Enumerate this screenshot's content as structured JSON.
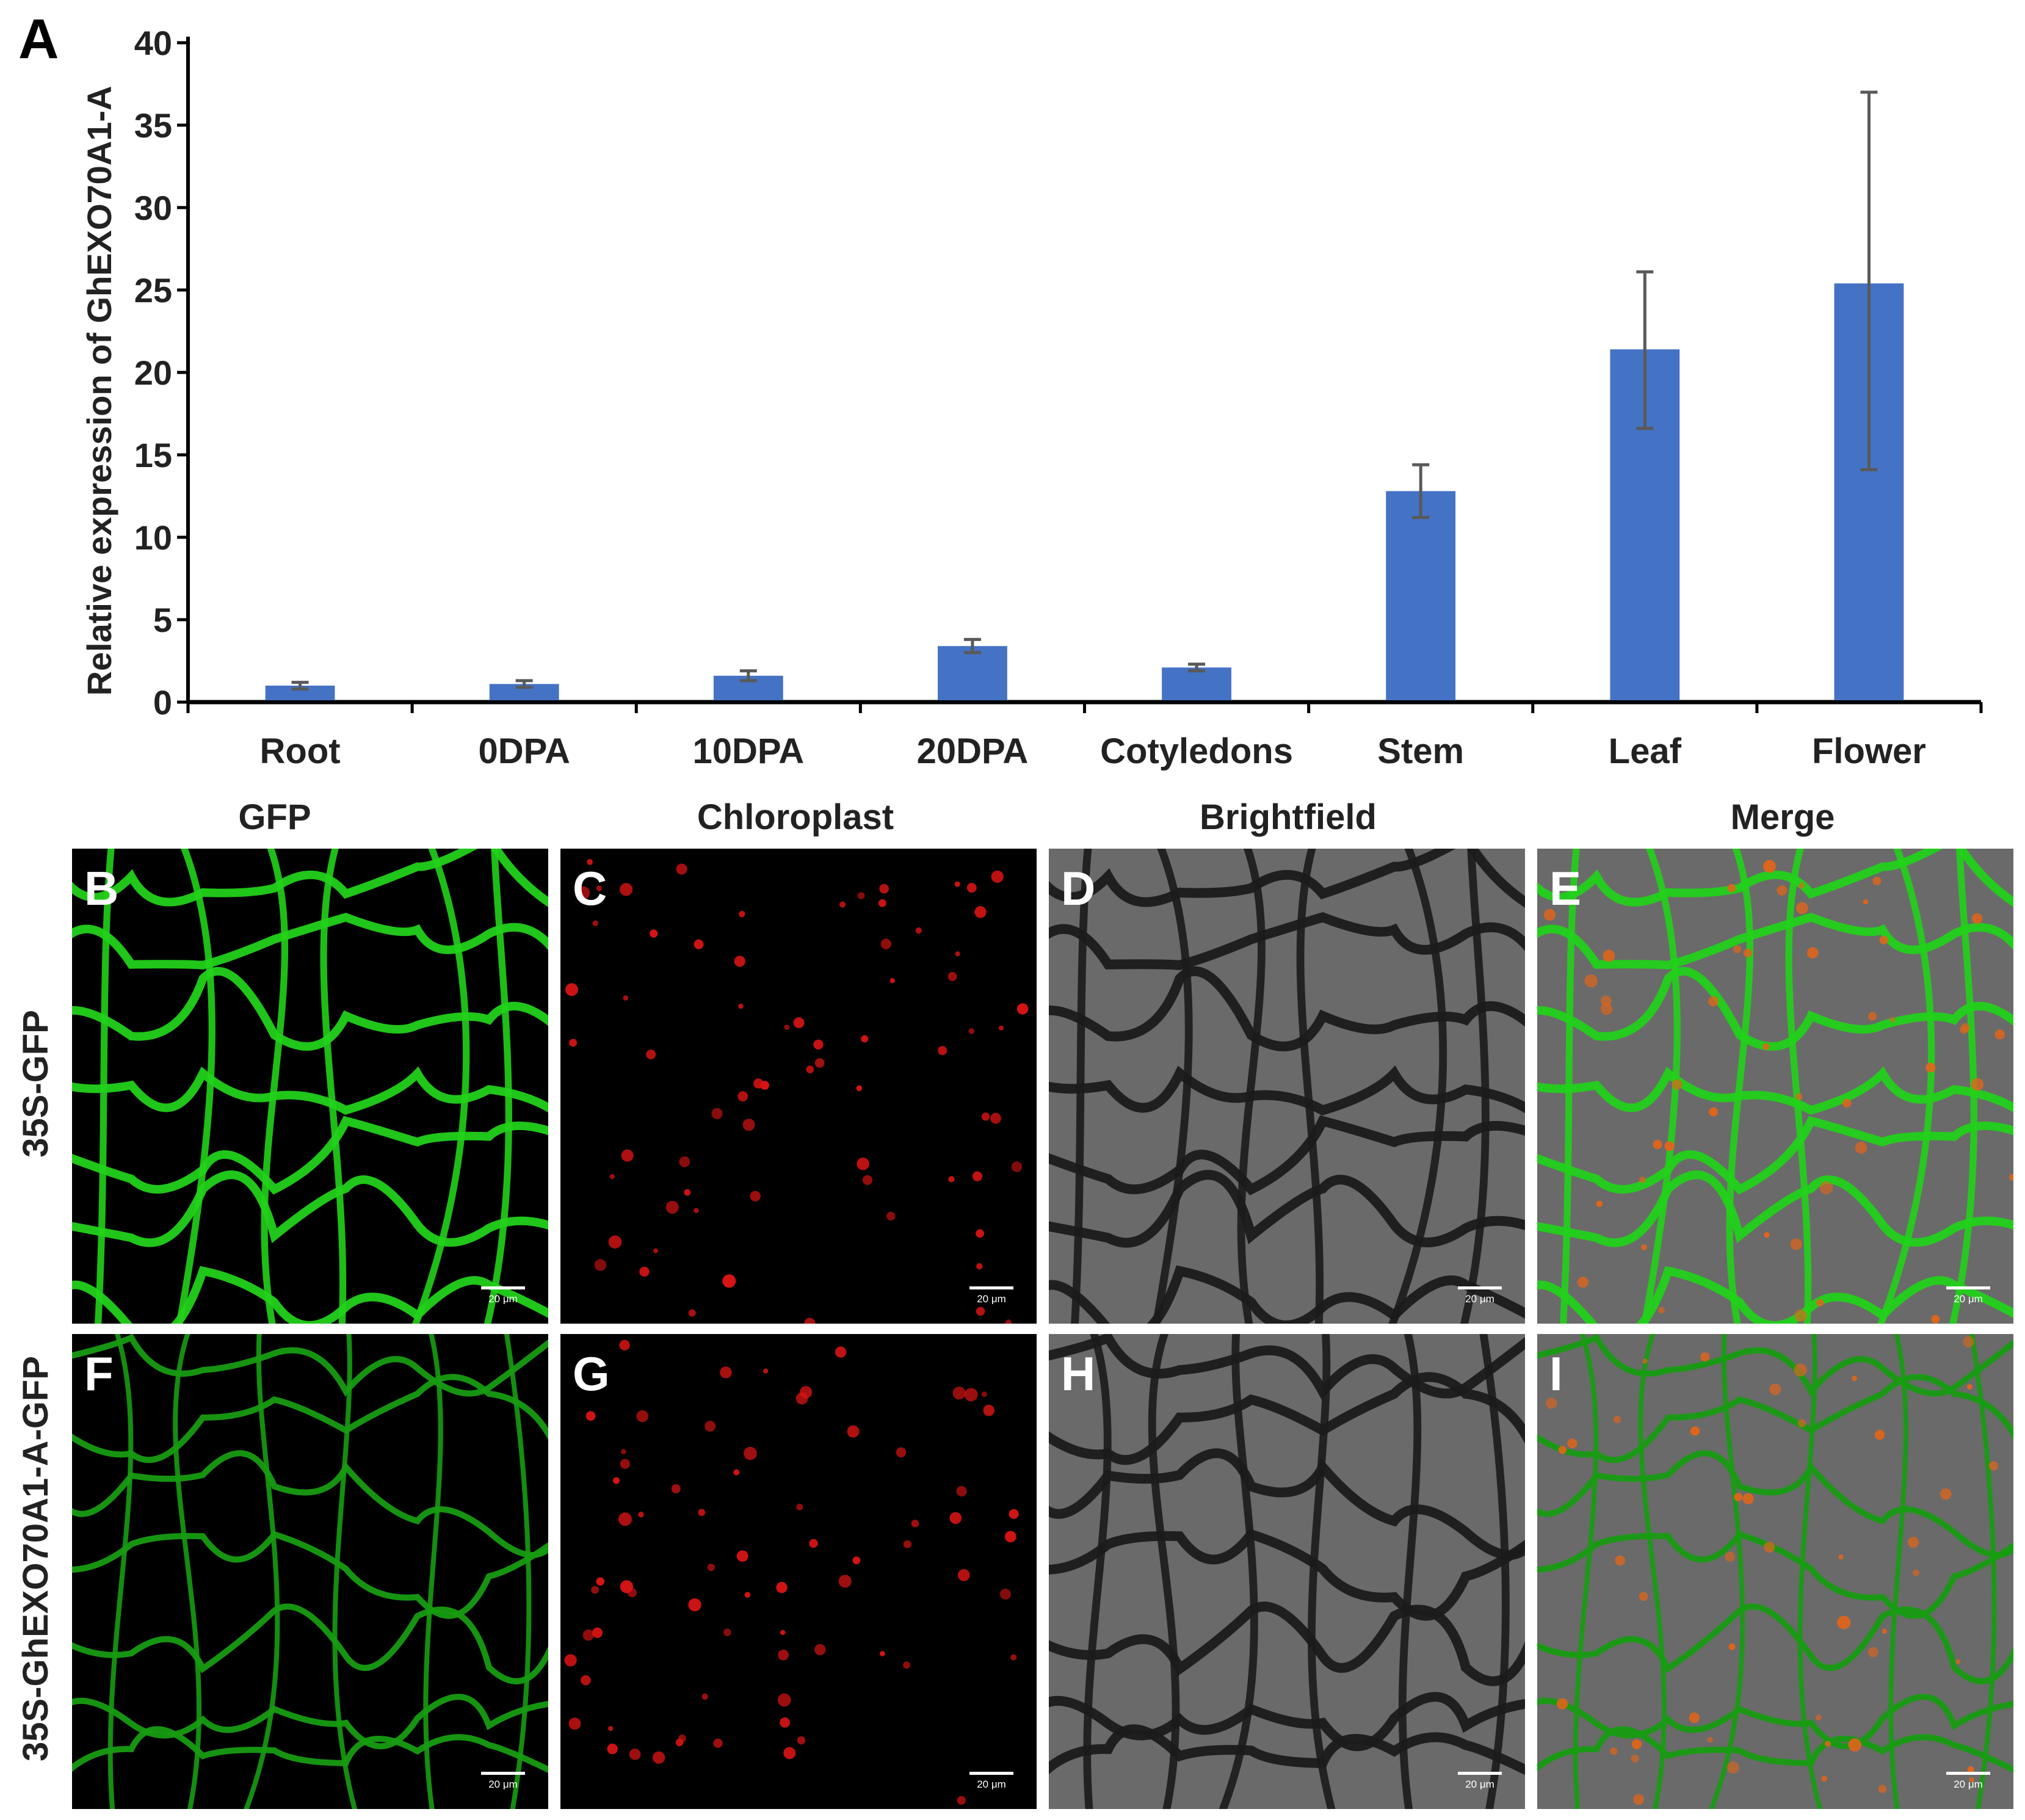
{
  "chart_data": {
    "type": "bar",
    "panel_label": "A",
    "title": "",
    "xlabel": "",
    "ylabel": "Relative expression of GhEXO70A1-A",
    "ylim": [
      0,
      40
    ],
    "yticks": [
      0,
      5,
      10,
      15,
      20,
      25,
      30,
      35,
      40
    ],
    "categories": [
      "Root",
      "0DPA",
      "10DPA",
      "20DPA",
      "Cotyledons",
      "Stem",
      "Leaf",
      "Flower"
    ],
    "values": [
      1.0,
      1.1,
      1.6,
      3.4,
      2.1,
      12.8,
      21.4,
      25.4
    ],
    "error_low": [
      0.2,
      0.2,
      0.3,
      0.4,
      0.2,
      1.6,
      4.8,
      11.3
    ],
    "error_high": [
      0.2,
      0.2,
      0.3,
      0.4,
      0.2,
      1.6,
      4.7,
      11.6
    ],
    "bar_color": "#4472c4",
    "error_color": "#595959",
    "grid": false,
    "legend": "none"
  },
  "micrographs": {
    "column_headers": [
      "GFP",
      "Chloroplast",
      "Brightfield",
      "Merge"
    ],
    "row_labels": [
      "35S-GFP",
      "35S-GhEXO70A1-A-GFP"
    ],
    "panels": [
      {
        "letter": "B",
        "channel": "GFP",
        "scale": "20 μm"
      },
      {
        "letter": "C",
        "channel": "Chloroplast",
        "scale": "20 μm"
      },
      {
        "letter": "D",
        "channel": "Brightfield",
        "scale": "20 μm"
      },
      {
        "letter": "E",
        "channel": "Merge",
        "scale": "20 μm"
      },
      {
        "letter": "F",
        "channel": "GFP",
        "scale": "20 μm"
      },
      {
        "letter": "G",
        "channel": "Chloroplast",
        "scale": "20 μm"
      },
      {
        "letter": "H",
        "channel": "Brightfield",
        "scale": "20 μm"
      },
      {
        "letter": "I",
        "channel": "Merge",
        "scale": "20 μm"
      }
    ],
    "colors": {
      "gfp": "#22d11a",
      "chloroplast": "#d81414",
      "brightfield": "#6a6a6a",
      "background": "#000000"
    }
  }
}
